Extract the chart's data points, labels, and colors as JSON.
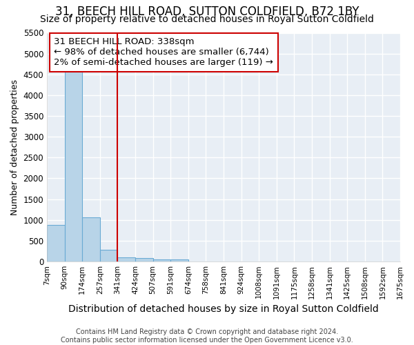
{
  "title": "31, BEECH HILL ROAD, SUTTON COLDFIELD, B72 1BY",
  "subtitle": "Size of property relative to detached houses in Royal Sutton Coldfield",
  "xlabel": "Distribution of detached houses by size in Royal Sutton Coldfield",
  "ylabel": "Number of detached properties",
  "footer_line1": "Contains HM Land Registry data © Crown copyright and database right 2024.",
  "footer_line2": "Contains public sector information licensed under the Open Government Licence v3.0.",
  "annotation_title": "31 BEECH HILL ROAD: 338sqm",
  "annotation_line1": "← 98% of detached houses are smaller (6,744)",
  "annotation_line2": "2% of semi-detached houses are larger (119) →",
  "bar_values": [
    880,
    4560,
    1060,
    290,
    95,
    90,
    55,
    50,
    0,
    0,
    0,
    0,
    0,
    0,
    0,
    0,
    0,
    0,
    0,
    0
  ],
  "tick_labels": [
    "7sqm",
    "90sqm",
    "174sqm",
    "257sqm",
    "341sqm",
    "424sqm",
    "507sqm",
    "591sqm",
    "674sqm",
    "758sqm",
    "841sqm",
    "924sqm",
    "1008sqm",
    "1091sqm",
    "1175sqm",
    "1258sqm",
    "1341sqm",
    "1425sqm",
    "1508sqm",
    "1592sqm",
    "1675sqm"
  ],
  "ylim": [
    0,
    5500
  ],
  "bar_color": "#b8d4e8",
  "bar_edge_color": "#6aaad4",
  "vline_color": "#cc0000",
  "annotation_box_color": "#cc0000",
  "bg_color": "#e8eef5",
  "grid_color": "#ffffff",
  "title_fontsize": 12,
  "subtitle_fontsize": 10,
  "ylabel_fontsize": 9,
  "xlabel_fontsize": 10,
  "tick_fontsize": 7.5,
  "annotation_fontsize": 9.5,
  "footer_fontsize": 7
}
